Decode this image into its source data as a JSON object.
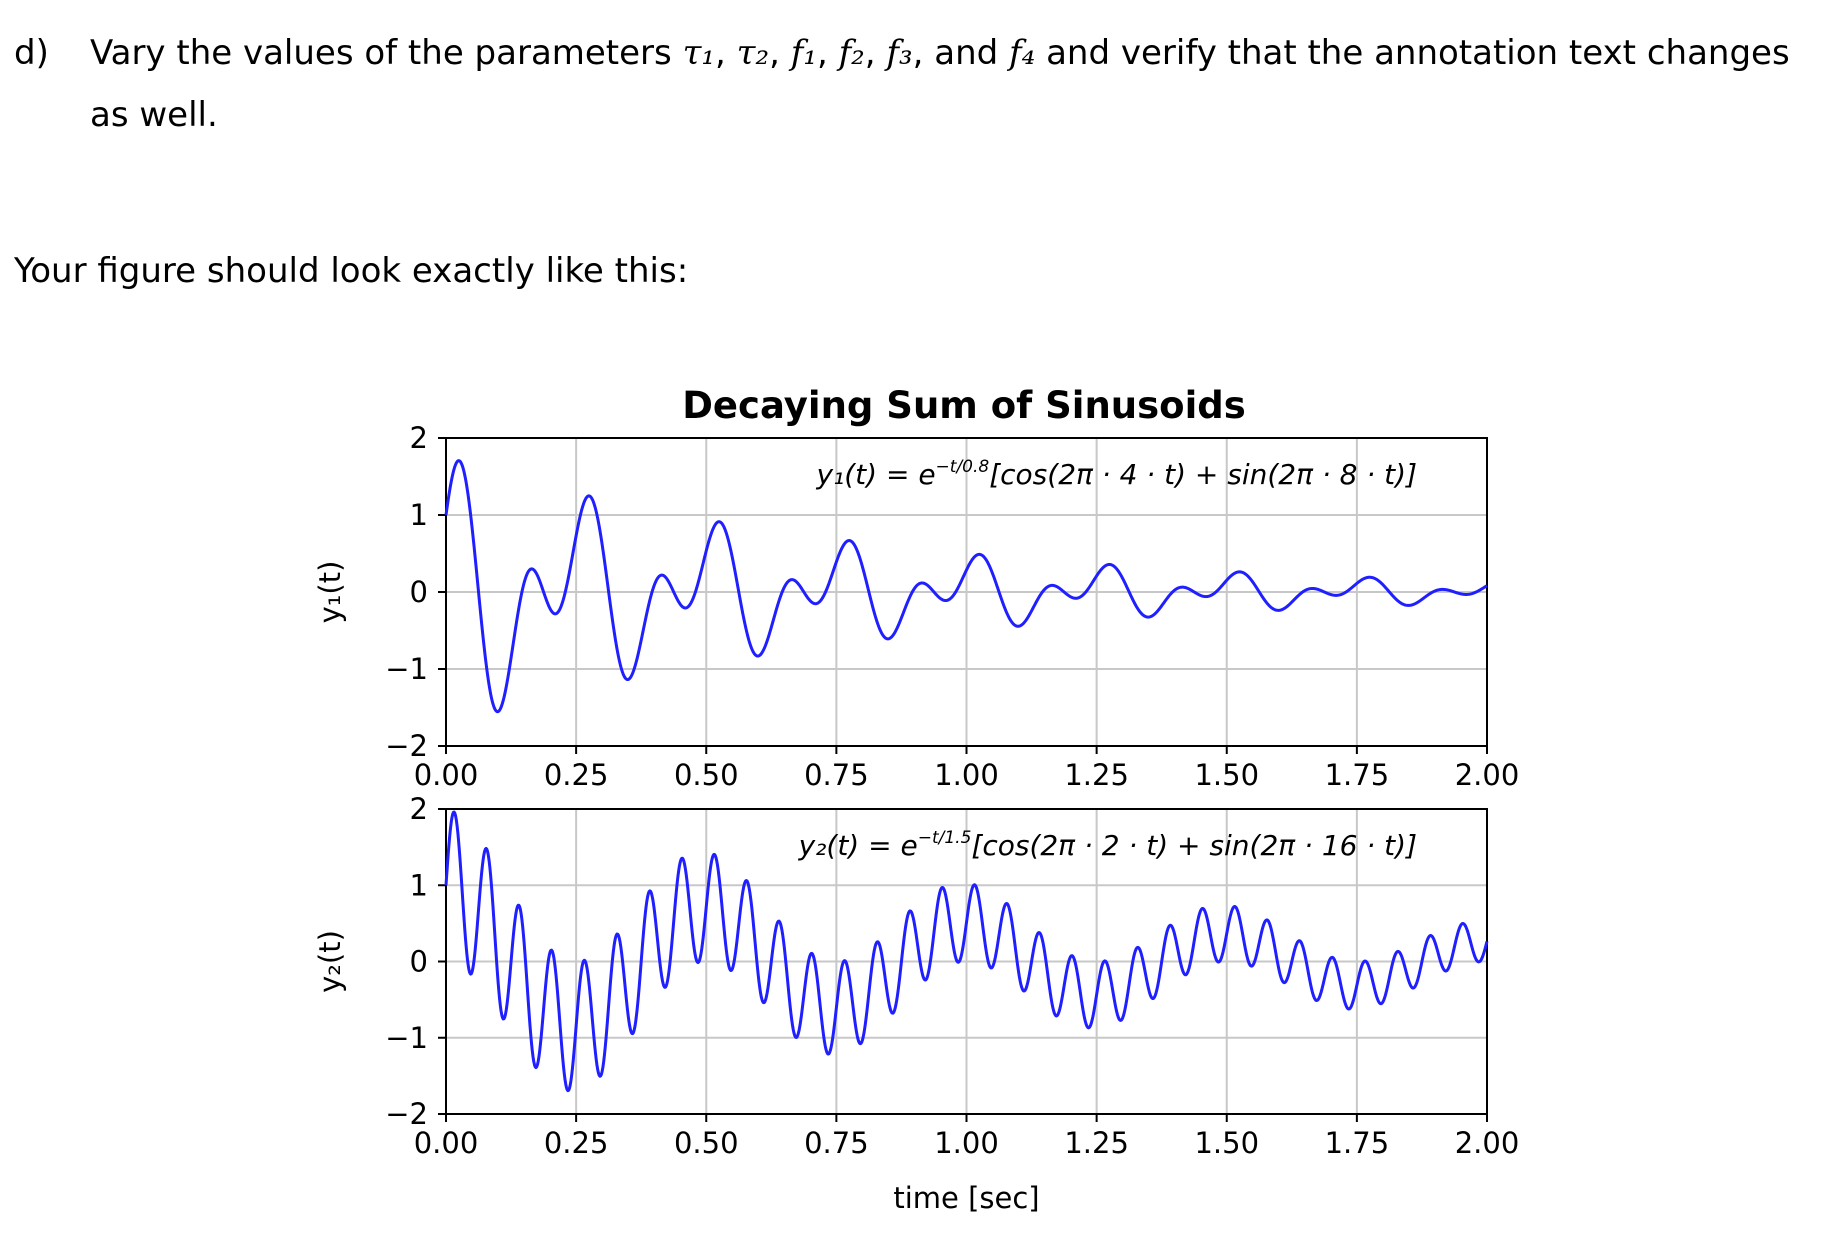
{
  "task": {
    "label": "d)",
    "text_before": "Vary the values of the parameters",
    "params": [
      "τ₁",
      "τ₂",
      "f₁",
      "f₂",
      "f₃"
    ],
    "and_word": "and",
    "last_param": "f₄",
    "text_after": "and verify that the annotation text changes as well."
  },
  "instruction": "Your figure should look exactly like this:",
  "figure": {
    "title": "Decaying Sum of Sinusoids",
    "xlabel": "time [sec]",
    "line_color": "#1f1fff",
    "grid_color": "#c8c8c8"
  },
  "chart_data": [
    {
      "type": "line",
      "title": "Decaying Sum of Sinusoids",
      "ylabel": "y₁(t)",
      "xlabel": "",
      "xlim": [
        0,
        2
      ],
      "ylim": [
        -2,
        2
      ],
      "xticks": [
        "0.00",
        "0.25",
        "0.50",
        "0.75",
        "1.00",
        "1.25",
        "1.50",
        "1.75",
        "2.00"
      ],
      "yticks": [
        "2",
        "1",
        "0",
        "−1",
        "−2"
      ],
      "grid": true,
      "annotation": {
        "lhs": "y₁(t) = e",
        "exponent": "−t/0.8",
        "rhs": "[cos(2π · 4 · t) + sin(2π · 8 · t)]"
      },
      "series": [
        {
          "function": "exp(-t/0.8) * (cos(2π·4·t) + sin(2π·8·t))",
          "tau": 0.8,
          "f_cos": 4,
          "f_sin": 8,
          "t_range": [
            0,
            2
          ],
          "color": "#1f1fff"
        }
      ]
    },
    {
      "type": "line",
      "title": "",
      "ylabel": "y₂(t)",
      "xlabel": "time [sec]",
      "xlim": [
        0,
        2
      ],
      "ylim": [
        -2,
        2
      ],
      "xticks": [
        "0.00",
        "0.25",
        "0.50",
        "0.75",
        "1.00",
        "1.25",
        "1.50",
        "1.75",
        "2.00"
      ],
      "yticks": [
        "2",
        "1",
        "0",
        "−1",
        "−2"
      ],
      "grid": true,
      "annotation": {
        "lhs": "y₂(t) = e",
        "exponent": "−t/1.5",
        "rhs": "[cos(2π · 2 · t) + sin(2π · 16 · t)]"
      },
      "series": [
        {
          "function": "exp(-t/1.5) * (cos(2π·2·t) + sin(2π·16·t))",
          "tau": 1.5,
          "f_cos": 2,
          "f_sin": 16,
          "t_range": [
            0,
            2
          ],
          "color": "#1f1fff"
        }
      ]
    }
  ]
}
